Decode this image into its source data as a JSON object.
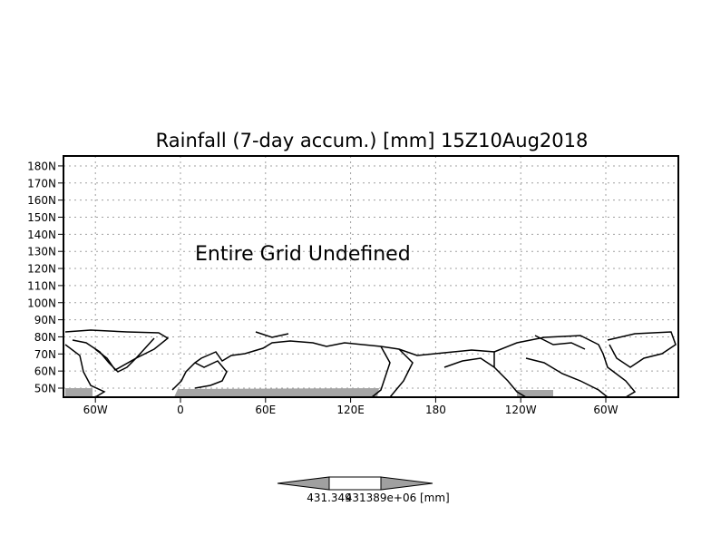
{
  "title": "Rainfall (7-day accum.) [mm] 15Z10Aug2018",
  "message": "Entire Grid Undefined",
  "lat_ticks": [
    {
      "value": 180,
      "label": "180N"
    },
    {
      "value": 170,
      "label": "170N"
    },
    {
      "value": 160,
      "label": "160N"
    },
    {
      "value": 150,
      "label": "150N"
    },
    {
      "value": 140,
      "label": "140N"
    },
    {
      "value": 130,
      "label": "130N"
    },
    {
      "value": 120,
      "label": "120N"
    },
    {
      "value": 110,
      "label": "110N"
    },
    {
      "value": 100,
      "label": "100N"
    },
    {
      "value": 90,
      "label": "90N"
    },
    {
      "value": 80,
      "label": "80N"
    },
    {
      "value": 70,
      "label": "70N"
    },
    {
      "value": 60,
      "label": "60N"
    },
    {
      "value": 50,
      "label": "50N"
    }
  ],
  "lon_ticks": [
    {
      "value": -60,
      "label": "60W"
    },
    {
      "value": 0,
      "label": "0"
    },
    {
      "value": 60,
      "label": "60E"
    },
    {
      "value": 120,
      "label": "120E"
    },
    {
      "value": 180,
      "label": "180"
    },
    {
      "value": 240,
      "label": "120W"
    },
    {
      "value": 300,
      "label": "60W"
    }
  ],
  "colorbar": {
    "label_left": "431.349",
    "label_right": "431389e+06",
    "units": "[mm]",
    "fill_color": "#a0a0a0"
  },
  "colors": {
    "shading": "#a5a5a5",
    "grid": "#a0a0a0"
  }
}
